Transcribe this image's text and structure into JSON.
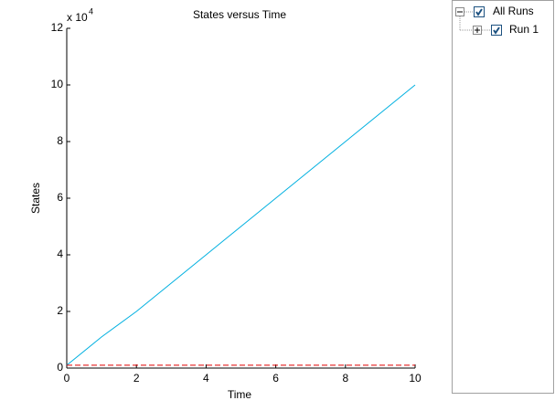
{
  "chart_data": {
    "type": "line",
    "title": "States versus Time",
    "x_label": "Time",
    "y_label": "States",
    "y_exponent": {
      "base": "x 10",
      "power": "4"
    },
    "x": [
      0,
      1,
      2,
      3,
      4,
      5,
      6,
      7,
      8,
      9,
      10
    ],
    "series": [
      {
        "color": "#00b0e0",
        "dash": false,
        "values": [
          0.1,
          1.1,
          2.0,
          3.0,
          4.0,
          5.0,
          6.0,
          7.0,
          8.0,
          9.0,
          10.0
        ]
      },
      {
        "color": "#e00000",
        "dash": true,
        "values": [
          0.1,
          0.1,
          0.1,
          0.1,
          0.1,
          0.1,
          0.1,
          0.1,
          0.1,
          0.1,
          0.1
        ]
      },
      {
        "color": "#000000",
        "dash": false,
        "values": [
          0,
          0,
          0,
          0,
          0,
          0,
          0,
          0,
          0,
          0,
          0
        ]
      }
    ],
    "xlim": [
      0,
      10
    ],
    "xticks": [
      0,
      2,
      4,
      6,
      8,
      10
    ],
    "ylim": [
      0,
      12
    ],
    "yticks": [
      0,
      2,
      4,
      6,
      8,
      10,
      12
    ],
    "grid": false
  },
  "tree": {
    "root": "All Runs",
    "child": "Run 1"
  }
}
